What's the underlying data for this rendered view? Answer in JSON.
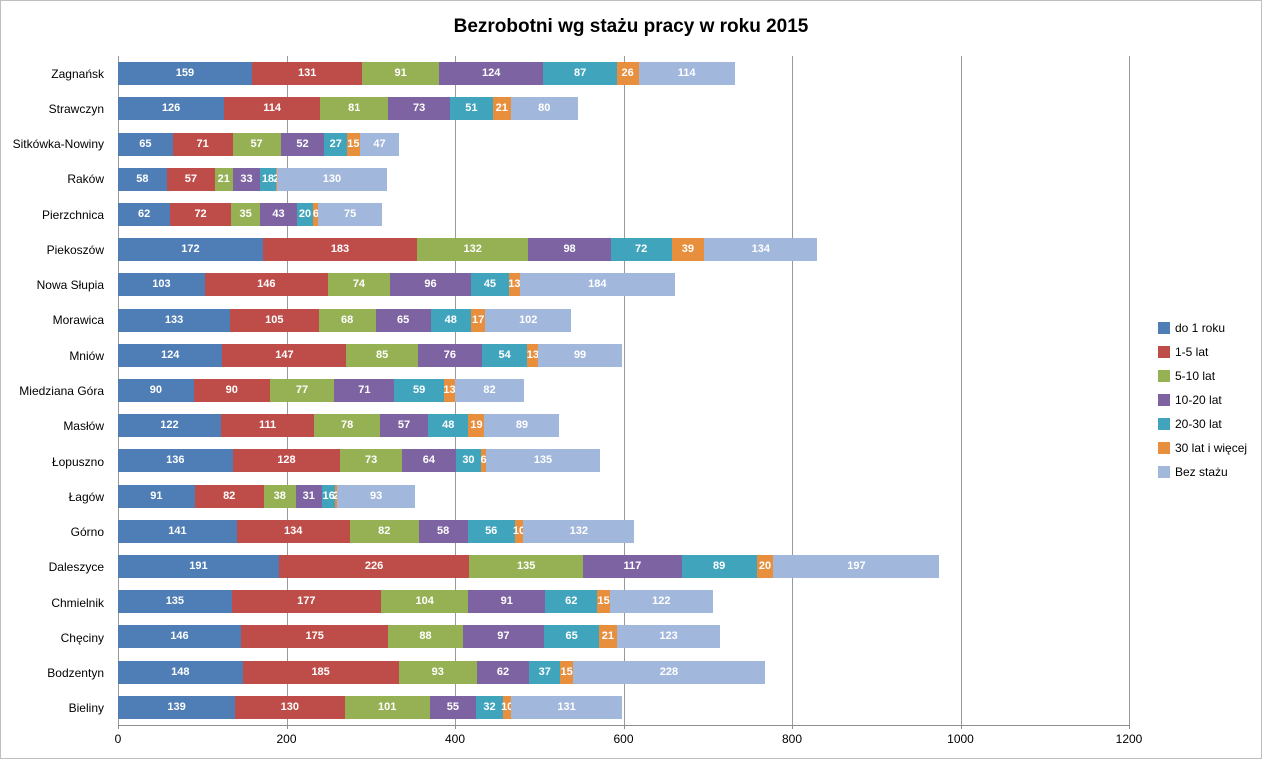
{
  "chart_data": {
    "type": "bar",
    "orientation": "horizontal",
    "stacked": true,
    "title": "Bezrobotni wg stażu pracy w roku 2015",
    "xlabel": "",
    "ylabel": "",
    "xlim": [
      0,
      1200
    ],
    "xticks": [
      0,
      200,
      400,
      600,
      800,
      1000,
      1200
    ],
    "grid": true,
    "legend_position": "right",
    "categories": [
      "Zagnańsk",
      "Strawczyn",
      "Sitkówka-Nowiny",
      "Raków",
      "Pierzchnica",
      "Piekoszów",
      "Nowa Słupia",
      "Morawica",
      "Mniów",
      "Miedziana Góra",
      "Masłów",
      "Łopuszno",
      "Łagów",
      "Górno",
      "Daleszyce",
      "Chmielnik",
      "Chęciny",
      "Bodzentyn",
      "Bieliny"
    ],
    "series": [
      {
        "name": "do 1 roku",
        "color": "#4e7eb5",
        "values": [
          159,
          126,
          65,
          58,
          62,
          172,
          103,
          133,
          124,
          90,
          122,
          136,
          91,
          141,
          191,
          135,
          146,
          148,
          139
        ]
      },
      {
        "name": "1-5 lat",
        "color": "#be4c48",
        "values": [
          131,
          114,
          71,
          57,
          72,
          183,
          146,
          105,
          147,
          90,
          111,
          128,
          82,
          134,
          226,
          177,
          175,
          185,
          130
        ]
      },
      {
        "name": "5-10 lat",
        "color": "#96b054",
        "values": [
          91,
          81,
          57,
          21,
          35,
          132,
          74,
          68,
          85,
          77,
          78,
          73,
          38,
          82,
          135,
          104,
          88,
          93,
          101
        ]
      },
      {
        "name": "10-20 lat",
        "color": "#7d63a2",
        "values": [
          124,
          73,
          52,
          33,
          43,
          98,
          96,
          65,
          76,
          71,
          57,
          64,
          31,
          58,
          117,
          91,
          97,
          62,
          55
        ]
      },
      {
        "name": "20-30 lat",
        "color": "#3fa4bc",
        "values": [
          87,
          51,
          27,
          18,
          20,
          72,
          45,
          48,
          54,
          59,
          48,
          30,
          16,
          56,
          89,
          62,
          65,
          37,
          32
        ]
      },
      {
        "name": "30 lat i więcej",
        "color": "#e88f3e",
        "values": [
          26,
          21,
          15,
          2,
          6,
          39,
          13,
          17,
          13,
          13,
          19,
          6,
          2,
          10,
          20,
          15,
          21,
          15,
          10
        ]
      },
      {
        "name": "Bez stażu",
        "color": "#a2b7dc",
        "values": [
          114,
          80,
          47,
          130,
          75,
          134,
          184,
          102,
          99,
          82,
          89,
          135,
          93,
          132,
          197,
          122,
          123,
          228,
          131
        ]
      }
    ]
  }
}
